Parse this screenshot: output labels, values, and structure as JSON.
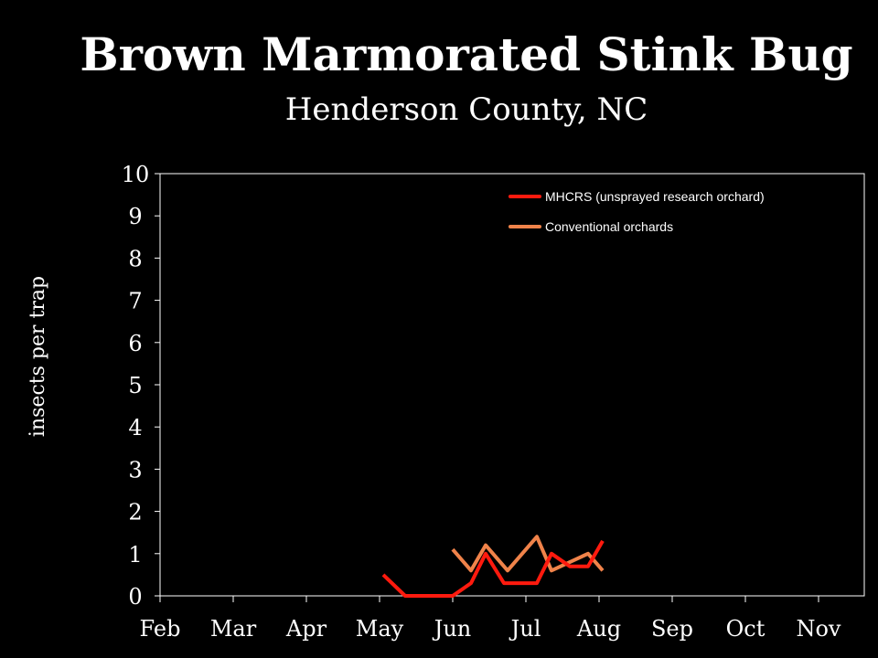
{
  "chart_data": {
    "type": "line",
    "title": "Brown Marmorated Stink Bug",
    "subtitle": "Henderson County, NC",
    "ylabel": "insects per trap",
    "xlabel": "",
    "categories": [
      "Feb",
      "Mar",
      "Apr",
      "May",
      "Jun",
      "Jul",
      "Aug",
      "Sep",
      "Oct",
      "Nov"
    ],
    "ylim": [
      0,
      10
    ],
    "yticks": [
      0,
      1,
      2,
      3,
      4,
      5,
      6,
      7,
      8,
      9,
      10
    ],
    "grid": false,
    "legend_position": "top-right",
    "series": [
      {
        "name": "MHCRS (unsprayed research orchard)",
        "color": "#ff1a0e",
        "x": [
          3.05,
          3.35,
          3.65,
          4.0,
          4.25,
          4.45,
          4.7,
          5.15,
          5.35,
          5.6,
          5.85,
          6.05
        ],
        "y": [
          0.5,
          0,
          0,
          0,
          0.3,
          1.0,
          0.3,
          0.3,
          1.0,
          0.7,
          0.7,
          1.3
        ]
      },
      {
        "name": "Conventional orchards",
        "color": "#f0834a",
        "x": [
          4.0,
          4.25,
          4.45,
          4.75,
          5.15,
          5.35,
          5.85,
          6.05
        ],
        "y": [
          1.1,
          0.6,
          1.2,
          0.6,
          1.4,
          0.6,
          1.0,
          0.6
        ]
      }
    ]
  }
}
